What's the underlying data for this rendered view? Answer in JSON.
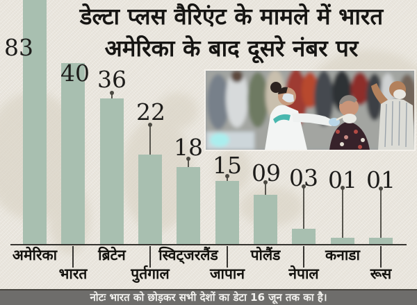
{
  "title": {
    "line1": "डेल्टा प्लस वैरिएंट के मामले में भारत",
    "line2": "अमेरिका के बाद दूसरे नंबर पर"
  },
  "note": {
    "text": "नोटः भारत को छोड़कर सभी देशों का डेटा 16 जून तक का है।"
  },
  "photo": {
    "name": "covid-swab-testing-photo"
  },
  "colors": {
    "paper": "#e9e5dd",
    "bar": "#a8bfb0",
    "ink": "#1d1c1a",
    "stem": "#4a4841",
    "axis": "#35332f",
    "note_bg": "#6e6d6b",
    "note_text": "#f3f2ef",
    "map": "#d8d2c3"
  },
  "chart_data": {
    "type": "bar",
    "title": "डेल्टा प्लस वैरिएंट के मामले में भारत अमेरिका के बाद दूसरे नंबर पर",
    "categories": [
      "अमेरिका",
      "भारत",
      "ब्रिटेन",
      "पुर्तगाल",
      "स्विट्जरलैंड",
      "जापान",
      "पोलैंड",
      "नेपाल",
      "कनाडा",
      "रूस"
    ],
    "values": [
      83,
      40,
      36,
      22,
      18,
      15,
      9,
      3,
      1,
      1
    ],
    "value_labels": [
      "83",
      "40",
      "36",
      "22",
      "18",
      "15",
      "09",
      "03",
      "01",
      "01"
    ],
    "xlabel": "",
    "ylabel": "",
    "ylim": [
      0,
      90
    ],
    "grid": false,
    "legend": false,
    "orientation": "vertical",
    "bar_color": "#a8bfb0",
    "annotation": "नोटः भारत को छोड़कर सभी देशों का डेटा 16 जून तक का है।"
  }
}
